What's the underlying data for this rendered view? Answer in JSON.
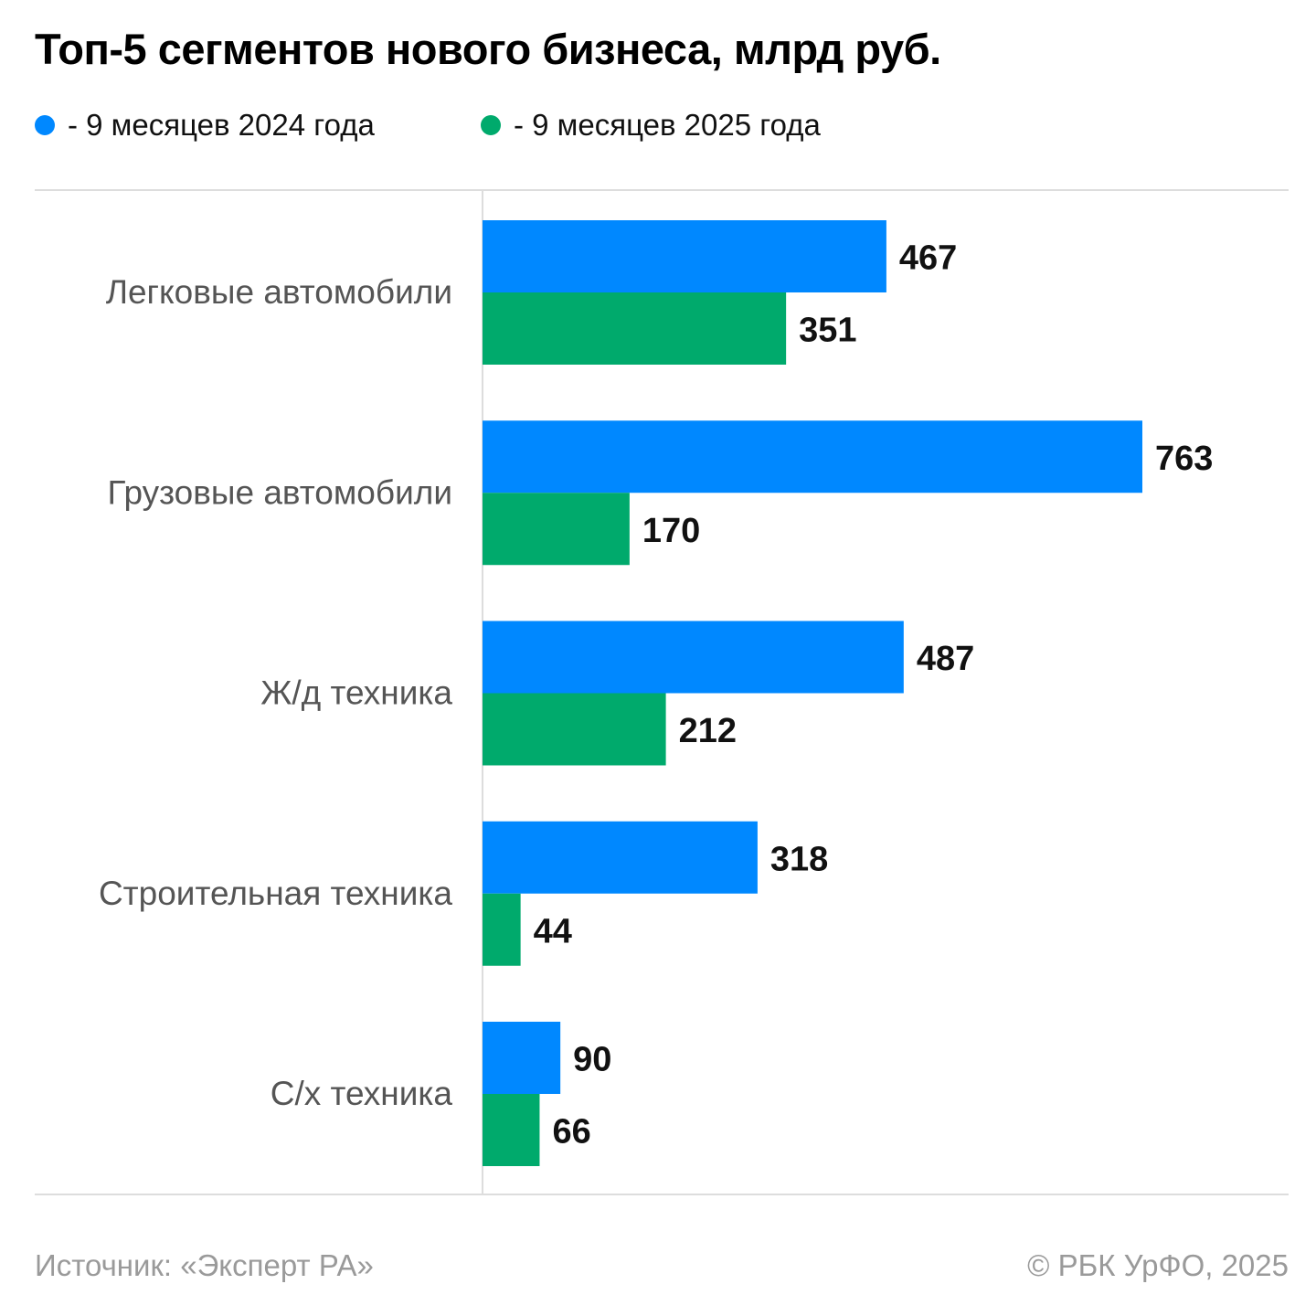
{
  "title": "Топ-5 сегментов нового бизнеса, млрд руб.",
  "colors": {
    "series_2024": "#0088ff",
    "series_2025": "#00aa6c",
    "axis": "#dddddd",
    "category_text": "#555555",
    "footer_text": "#9a9a9a"
  },
  "chart_data": {
    "type": "bar",
    "orientation": "horizontal",
    "title": "Топ-5 сегментов нового бизнеса, млрд руб.",
    "categories": [
      "Легковые автомобили",
      "Грузовые автомобили",
      "Ж/д техника",
      "Строительная техника",
      "С/х техника"
    ],
    "series": [
      {
        "name": "- 9 месяцев 2024 года",
        "color": "#0088ff",
        "values": [
          467,
          763,
          487,
          318,
          90
        ]
      },
      {
        "name": "- 9 месяцев 2025 года",
        "color": "#00aa6c",
        "values": [
          351,
          170,
          212,
          44,
          66
        ]
      }
    ],
    "xlim": [
      0,
      763
    ],
    "xlabel": "",
    "ylabel": "",
    "legend": "top-left",
    "grid": false
  },
  "footer": {
    "source": "Источник: «Эксперт РА»",
    "copyright": "© РБК УрФО, 2025"
  }
}
